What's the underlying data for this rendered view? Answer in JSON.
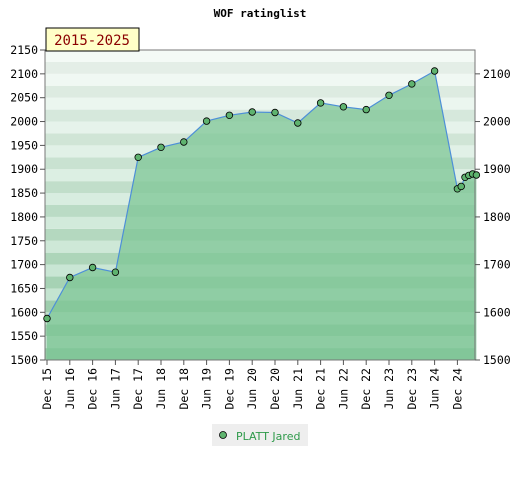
{
  "chart_data": {
    "type": "area",
    "title": "WOF ratinglist",
    "period_label": "2015-2025",
    "ylim": [
      1500,
      2150
    ],
    "y_ticks": [
      1500,
      1550,
      1600,
      1650,
      1700,
      1750,
      1800,
      1850,
      1900,
      1950,
      2000,
      2050,
      2100,
      2150
    ],
    "right_y_ticks": [
      1500,
      1600,
      1700,
      1800,
      1900,
      2000,
      2100
    ],
    "x_ticks": [
      {
        "label": "Dec 15",
        "x": "2015-12"
      },
      {
        "label": "Jun 16",
        "x": "2016-06"
      },
      {
        "label": "Dec 16",
        "x": "2016-12"
      },
      {
        "label": "Jun 17",
        "x": "2017-06"
      },
      {
        "label": "Dec 17",
        "x": "2017-12"
      },
      {
        "label": "Jun 18",
        "x": "2018-06"
      },
      {
        "label": "Dec 18",
        "x": "2018-12"
      },
      {
        "label": "Jun 19",
        "x": "2019-06"
      },
      {
        "label": "Dec 19",
        "x": "2019-12"
      },
      {
        "label": "Jun 20",
        "x": "2020-06"
      },
      {
        "label": "Dec 20",
        "x": "2020-12"
      },
      {
        "label": "Jun 21",
        "x": "2021-06"
      },
      {
        "label": "Dec 21",
        "x": "2021-12"
      },
      {
        "label": "Jun 22",
        "x": "2022-06"
      },
      {
        "label": "Dec 22",
        "x": "2022-12"
      },
      {
        "label": "Jun 23",
        "x": "2023-06"
      },
      {
        "label": "Dec 23",
        "x": "2023-12"
      },
      {
        "label": "Jun 24",
        "x": "2024-06"
      },
      {
        "label": "Dec 24",
        "x": "2024-12"
      }
    ],
    "series": [
      {
        "name": "PLATT Jared",
        "color": "#5fb36f",
        "line_color": "#4d8fd8",
        "fill_color": "#7dc596",
        "points": [
          {
            "x": "2015-12",
            "y": 1587
          },
          {
            "x": "2016-06",
            "y": 1673
          },
          {
            "x": "2016-12",
            "y": 1694
          },
          {
            "x": "2017-06",
            "y": 1684
          },
          {
            "x": "2017-12",
            "y": 1925
          },
          {
            "x": "2018-06",
            "y": 1946
          },
          {
            "x": "2018-12",
            "y": 1957
          },
          {
            "x": "2019-06",
            "y": 2001
          },
          {
            "x": "2019-12",
            "y": 2013
          },
          {
            "x": "2020-06",
            "y": 2020
          },
          {
            "x": "2020-12",
            "y": 2019
          },
          {
            "x": "2021-06",
            "y": 1997
          },
          {
            "x": "2021-12",
            "y": 2039
          },
          {
            "x": "2022-06",
            "y": 2031
          },
          {
            "x": "2022-12",
            "y": 2025
          },
          {
            "x": "2023-06",
            "y": 2055
          },
          {
            "x": "2023-12",
            "y": 2079
          },
          {
            "x": "2024-06",
            "y": 2106
          },
          {
            "x": "2024-12",
            "y": 1859
          },
          {
            "x": "2025-01",
            "y": 1864
          },
          {
            "x": "2025-02",
            "y": 1883
          },
          {
            "x": "2025-03",
            "y": 1887
          },
          {
            "x": "2025-04",
            "y": 1890
          },
          {
            "x": "2025-05",
            "y": 1888
          }
        ]
      }
    ],
    "legend": "bottom-center",
    "grid": true,
    "colors": {
      "band_dark": "#8fcf9f",
      "band_light": "#e8f6ec",
      "legend_bg": "#eeeeee",
      "legend_text": "#2e9a4a",
      "label_bg": "#ffffc8",
      "label_text": "#8b0000"
    }
  }
}
